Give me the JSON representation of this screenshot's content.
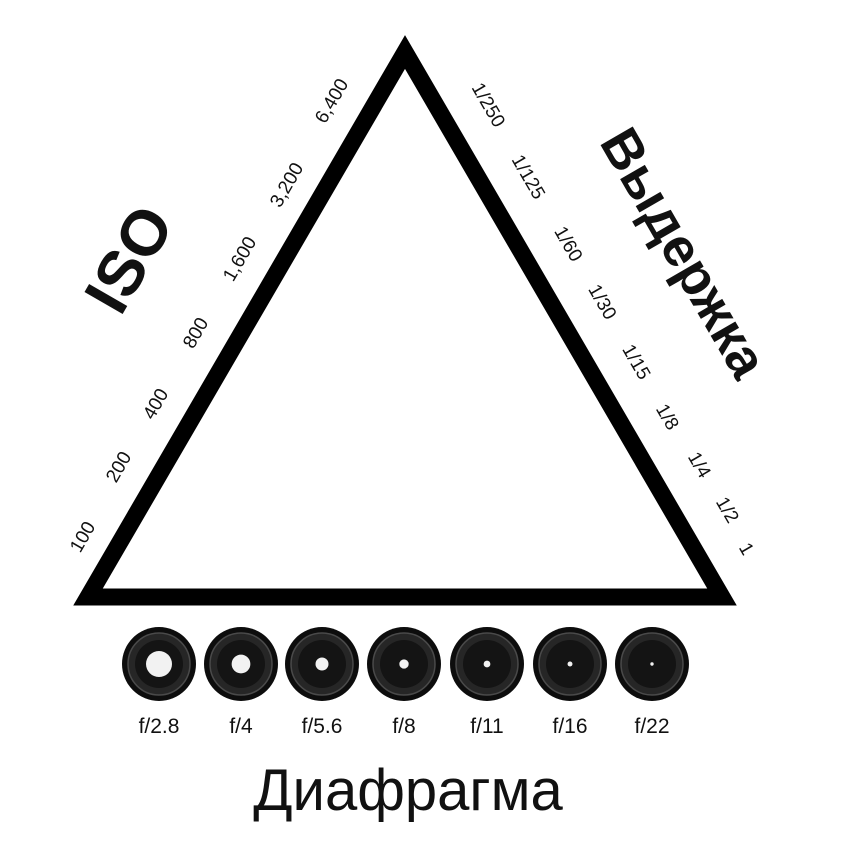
{
  "triangle": {
    "stroke_color": "#000000"
  },
  "iso": {
    "title": "ISO",
    "values": [
      "100",
      "200",
      "400",
      "800",
      "1,600",
      "3,200",
      "6,400"
    ]
  },
  "shutter": {
    "title": "Выдержка",
    "values": [
      "1/250",
      "1/125",
      "1/60",
      "1/30",
      "1/15",
      "1/8",
      "1/4",
      "1/2",
      "1"
    ]
  },
  "aperture": {
    "title": "Диафрагма",
    "stops": [
      {
        "label": "f/2.8",
        "opening": 1.0
      },
      {
        "label": "f/4",
        "opening": 0.72
      },
      {
        "label": "f/5.6",
        "opening": 0.5
      },
      {
        "label": "f/8",
        "opening": 0.36
      },
      {
        "label": "f/11",
        "opening": 0.26
      },
      {
        "label": "f/16",
        "opening": 0.19
      },
      {
        "label": "f/22",
        "opening": 0.13
      }
    ]
  }
}
